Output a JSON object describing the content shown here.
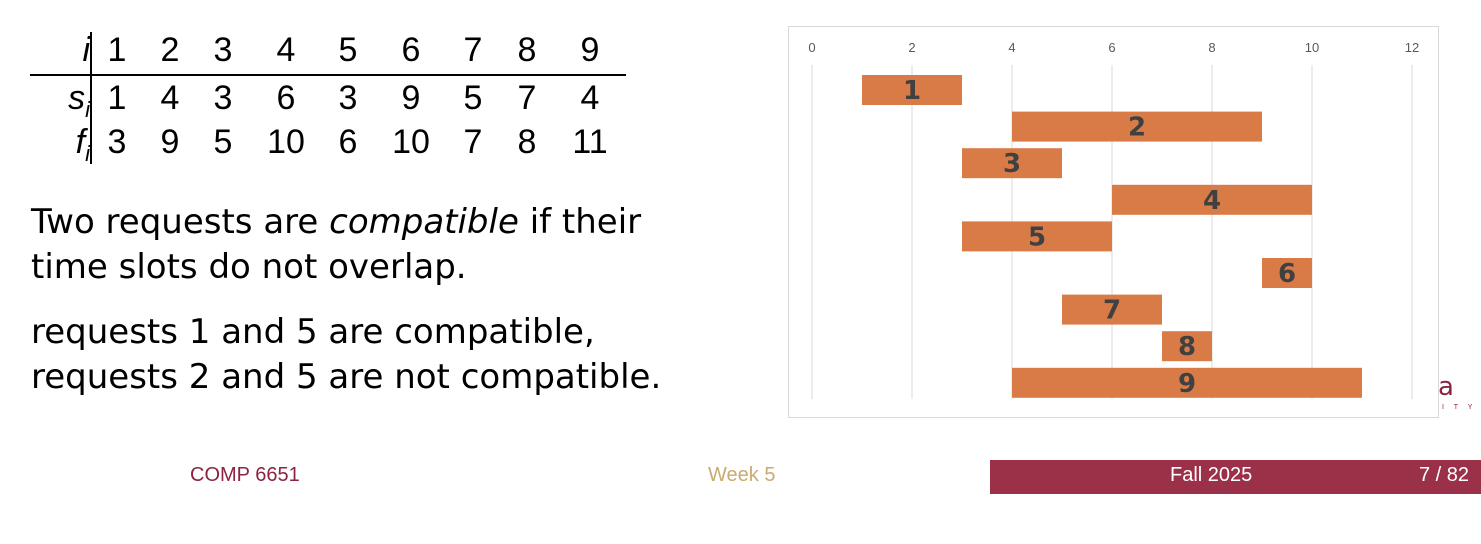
{
  "table": {
    "header_label": "i",
    "rows": [
      {
        "label": "s",
        "sub": "i"
      },
      {
        "label": "f",
        "sub": "i"
      }
    ],
    "i_values": [
      "1",
      "2",
      "3",
      "4",
      "5",
      "6",
      "7",
      "8",
      "9"
    ],
    "s_values": [
      "1",
      "4",
      "3",
      "6",
      "3",
      "9",
      "5",
      "7",
      "4"
    ],
    "f_values": [
      "3",
      "9",
      "5",
      "10",
      "6",
      "10",
      "7",
      "8",
      "11"
    ]
  },
  "text": {
    "p1_a": "Two requests are ",
    "p1_em": "compatible",
    "p1_b": " if their",
    "p1_line2": "time slots do not overlap.",
    "p2_line1": "requests 1 and 5 are compatible,",
    "p2_line2": "requests 2 and 5 are not compatible."
  },
  "chart_data": {
    "type": "bar",
    "orientation": "horizontal-floating",
    "x_ticks": [
      "0",
      "2",
      "4",
      "6",
      "8",
      "10",
      "12"
    ],
    "xlim": [
      0,
      12
    ],
    "grid": true,
    "bar_color": "#D87B47",
    "bars": [
      {
        "label": "1",
        "start": 1,
        "end": 3
      },
      {
        "label": "2",
        "start": 4,
        "end": 9
      },
      {
        "label": "3",
        "start": 3,
        "end": 5
      },
      {
        "label": "4",
        "start": 6,
        "end": 10
      },
      {
        "label": "5",
        "start": 3,
        "end": 6
      },
      {
        "label": "6",
        "start": 9,
        "end": 10
      },
      {
        "label": "7",
        "start": 5,
        "end": 7
      },
      {
        "label": "8",
        "start": 7,
        "end": 8
      },
      {
        "label": "9",
        "start": 4,
        "end": 11
      }
    ]
  },
  "logo": {
    "fragment": "a",
    "subtext": "I T Y"
  },
  "footer": {
    "course": "COMP 6651",
    "week": "Week 5",
    "term": "Fall 2025",
    "page": "7 / 82"
  }
}
